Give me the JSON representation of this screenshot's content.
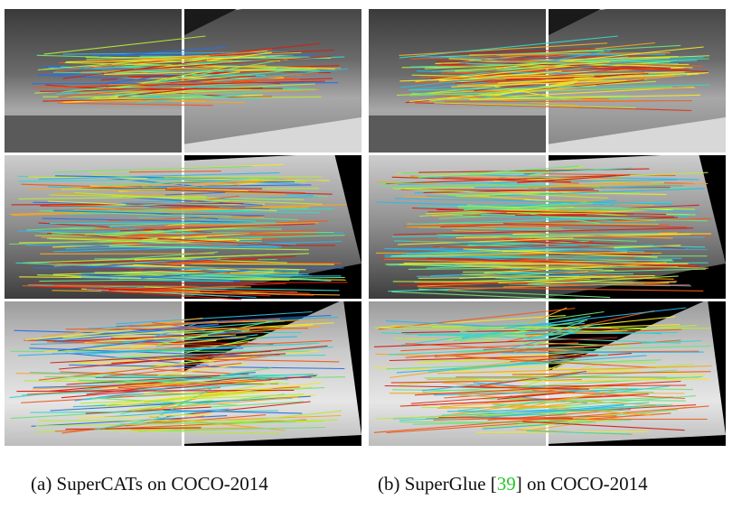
{
  "figure": {
    "panels": [
      {
        "id": "a",
        "caption_prefix": "(a) SuperCATs on COCO-2014",
        "caption_cite": "",
        "caption_suffix": "",
        "palette": [
          "#2a6fe0",
          "#2fb6e6",
          "#3ad6c4",
          "#6fe07a",
          "#b6ea3a",
          "#f1e62a",
          "#f6a623",
          "#ef5a1e",
          "#d21f16"
        ]
      },
      {
        "id": "b",
        "caption_prefix": "(b) SuperGlue [",
        "caption_cite": "39",
        "caption_suffix": "] on COCO-2014",
        "palette": [
          "#d21f16",
          "#e0361a",
          "#ef5a1e",
          "#f6a623",
          "#f1e62a",
          "#b6ea3a",
          "#6fe07a",
          "#3ad6c4",
          "#2fb6e6"
        ]
      }
    ],
    "colors": {
      "cite": "#22c922",
      "separator": "#ffffff",
      "background": "#ffffff"
    }
  }
}
